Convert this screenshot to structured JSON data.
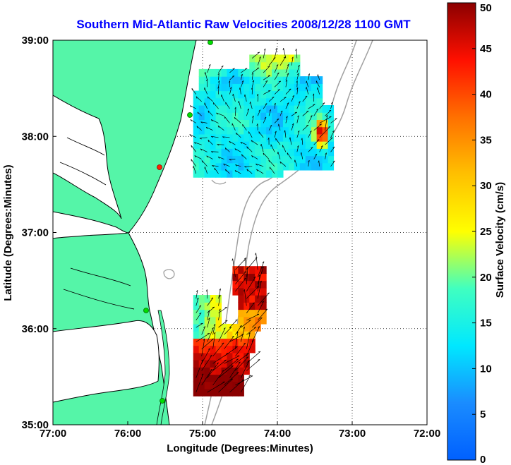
{
  "chart_data": {
    "type": "heatmap",
    "title": "Southern Mid-Atlantic Raw Velocities 2008/12/28 1100 GMT",
    "xlabel": "Longitude (Degrees:Minutes)",
    "ylabel": "Latitude (Degrees:Minutes)",
    "xlim": [
      -77,
      -72
    ],
    "ylim": [
      35,
      39
    ],
    "xticks": [
      {
        "value": -77,
        "label": "77:00"
      },
      {
        "value": -76,
        "label": "76:00"
      },
      {
        "value": -75,
        "label": "75:00"
      },
      {
        "value": -74,
        "label": "74:00"
      },
      {
        "value": -73,
        "label": "73:00"
      },
      {
        "value": -72,
        "label": "72:00"
      }
    ],
    "yticks": [
      {
        "value": 39,
        "label": "39:00"
      },
      {
        "value": 38,
        "label": "38:00"
      },
      {
        "value": 37,
        "label": "37:00"
      },
      {
        "value": 36,
        "label": "36:00"
      },
      {
        "value": 35,
        "label": "35:00"
      }
    ],
    "grid": "dotted",
    "colorbar": {
      "label": "Surface Velocity (cm/s)",
      "min": 0,
      "max": 50,
      "ticks": [
        0,
        5,
        10,
        15,
        20,
        25,
        30,
        35,
        40,
        45,
        50
      ],
      "colormap": "jet"
    },
    "colors": {
      "land": "#55f5a8",
      "coastline": "#000000",
      "bathymetry": "#a0a0a0",
      "station": "#00dd00",
      "station_alt": "#ff2200"
    },
    "northern_field": {
      "lon_range": [
        -75.2,
        -73.25
      ],
      "lat_range": [
        37.5,
        38.9
      ],
      "typical_speed_range": [
        5,
        30
      ],
      "max_speed_near": [
        -73.45,
        38.0
      ],
      "max_speed": 45
    },
    "southern_field": {
      "lon_range": [
        -75.2,
        -74.1
      ],
      "lat_range": [
        35.3,
        36.6
      ],
      "typical_speed_range": [
        10,
        50
      ],
      "max_speed": 50
    }
  }
}
